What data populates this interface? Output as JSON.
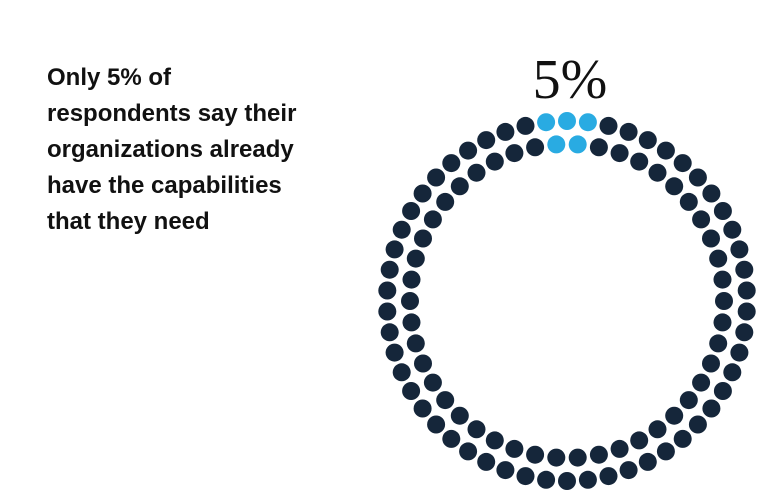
{
  "chart_data": {
    "type": "dot-ring",
    "text": "Only 5% of respondents say their organizations already have the capabilities that they need",
    "value": 5,
    "value_label": "5%",
    "color": "#29abe2",
    "rest_color": "#15263a"
  }
}
